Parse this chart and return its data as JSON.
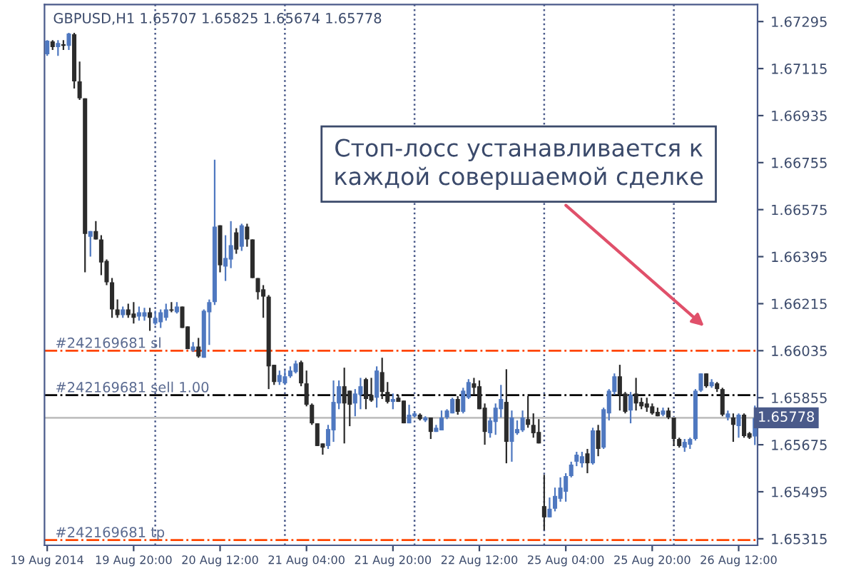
{
  "chart_data": {
    "type": "candlestick",
    "title": "GBPUSD,H1 1.65707 1.65825 1.65674 1.65778",
    "categories": [
      "19 Aug 2014",
      null,
      null,
      null,
      null,
      null,
      null,
      null,
      null,
      null,
      null,
      null,
      null,
      null,
      null,
      null,
      "19 Aug 20:00",
      null,
      null,
      null,
      null,
      null,
      null,
      null,
      null,
      null,
      null,
      null,
      null,
      null,
      null,
      null,
      "20 Aug 12:00",
      null,
      null,
      null,
      null,
      null,
      null,
      null,
      null,
      null,
      null,
      null,
      null,
      null,
      null,
      null,
      "21 Aug 04:00",
      null,
      null,
      null,
      null,
      null,
      null,
      null,
      null,
      null,
      null,
      null,
      null,
      null,
      null,
      null,
      "21 Aug 20:00",
      null,
      null,
      null,
      null,
      null,
      null,
      null,
      null,
      null,
      null,
      null,
      null,
      null,
      null,
      null,
      "22 Aug 12:00",
      null,
      null,
      null,
      null,
      null,
      null,
      null,
      null,
      null,
      null,
      null,
      null,
      null,
      null,
      null,
      "25 Aug 04:00",
      null,
      null,
      null,
      null,
      null,
      null,
      null,
      null,
      null,
      null,
      null,
      null,
      null,
      null,
      null,
      "25 Aug 20:00",
      null,
      null,
      null,
      null,
      null,
      null,
      null,
      null,
      null,
      null,
      null,
      null,
      null,
      null,
      null,
      "26 Aug 12:00",
      null,
      null,
      null
    ],
    "ohlc": [
      [
        1.6717,
        1.67224,
        1.67164,
        1.67222
      ],
      [
        1.67219,
        1.67224,
        1.67186,
        1.67197
      ],
      [
        1.67197,
        1.67224,
        1.67164,
        1.67213
      ],
      [
        1.67208,
        1.67224,
        1.67186,
        1.67202
      ],
      [
        1.67202,
        1.67252,
        1.67186,
        1.67249
      ],
      [
        1.67246,
        1.67252,
        1.67039,
        1.67066
      ],
      [
        1.67066,
        1.67142,
        1.66995,
        1.67001
      ],
      [
        1.67001,
        1.67001,
        1.66335,
        1.66482
      ],
      [
        1.66471,
        1.66493,
        1.66395,
        1.66493
      ],
      [
        1.66493,
        1.66531,
        1.66461,
        1.66461
      ],
      [
        1.66461,
        1.66477,
        1.66324,
        1.66373
      ],
      [
        1.66379,
        1.66384,
        1.66286,
        1.66297
      ],
      [
        1.66297,
        1.66313,
        1.66161,
        1.66193
      ],
      [
        1.66193,
        1.66231,
        1.66161,
        1.66171
      ],
      [
        1.66171,
        1.66204,
        1.66161,
        1.66193
      ],
      [
        1.66193,
        1.66215,
        1.66161,
        1.66171
      ],
      [
        1.66177,
        1.66221,
        1.66139,
        1.66161
      ],
      [
        1.66166,
        1.66204,
        1.6615,
        1.66182
      ],
      [
        1.66166,
        1.66199,
        1.6615,
        1.66182
      ],
      [
        1.66182,
        1.66199,
        1.66111,
        1.66161
      ],
      [
        1.66139,
        1.66188,
        1.66133,
        1.66161
      ],
      [
        1.66144,
        1.66193,
        1.66122,
        1.66182
      ],
      [
        1.66161,
        1.66215,
        1.6615,
        1.66193
      ],
      [
        1.66193,
        1.66221,
        1.66182,
        1.66188
      ],
      [
        1.66182,
        1.66221,
        1.66177,
        1.66204
      ],
      [
        1.66204,
        1.66204,
        1.66122,
        1.66122
      ],
      [
        1.66128,
        1.66128,
        1.66041,
        1.66041
      ],
      [
        1.66035,
        1.66068,
        1.6603,
        1.66051
      ],
      [
        1.66051,
        1.66084,
        1.66008,
        1.66013
      ],
      [
        1.66008,
        1.66193,
        1.66008,
        1.66188
      ],
      [
        1.66182,
        1.66231,
        1.66057,
        1.66221
      ],
      [
        1.66221,
        1.66766,
        1.6621,
        1.6651
      ],
      [
        1.66515,
        1.66515,
        1.66335,
        1.66362
      ],
      [
        1.66357,
        1.66477,
        1.66302,
        1.6639
      ],
      [
        1.66384,
        1.66531,
        1.66351,
        1.66439
      ],
      [
        1.66488,
        1.66504,
        1.66406,
        1.66422
      ],
      [
        1.66433,
        1.66521,
        1.66417,
        1.66515
      ],
      [
        1.6651,
        1.66521,
        1.66433,
        1.66461
      ],
      [
        1.66461,
        1.66461,
        1.66313,
        1.66313
      ],
      [
        1.66313,
        1.66313,
        1.66231,
        1.66259
      ],
      [
        1.6627,
        1.66286,
        1.66161,
        1.66242
      ],
      [
        1.66242,
        1.66248,
        1.65888,
        1.65975
      ],
      [
        1.65981,
        1.65981,
        1.65904,
        1.65915
      ],
      [
        1.65915,
        1.65959,
        1.65904,
        1.65942
      ],
      [
        1.6591,
        1.65959,
        1.65904,
        1.65937
      ],
      [
        1.65937,
        1.65975,
        1.65931,
        1.65959
      ],
      [
        1.65953,
        1.65997,
        1.65948,
        1.65986
      ],
      [
        1.65991,
        1.65997,
        1.65899,
        1.6591
      ],
      [
        1.6591,
        1.65959,
        1.65822,
        1.65828
      ],
      [
        1.65828,
        1.65833,
        1.65751,
        1.65757
      ],
      [
        1.65757,
        1.65757,
        1.6567,
        1.6567
      ],
      [
        1.6568,
        1.6568,
        1.65637,
        1.65664
      ],
      [
        1.6567,
        1.65751,
        1.65659,
        1.65735
      ],
      [
        1.6573,
        1.65921,
        1.65686,
        1.65839
      ],
      [
        1.65833,
        1.65921,
        1.65811,
        1.65899
      ],
      [
        1.65899,
        1.6597,
        1.6568,
        1.65833
      ],
      [
        1.65882,
        1.65882,
        1.65746,
        1.65828
      ],
      [
        1.65833,
        1.65888,
        1.65784,
        1.65871
      ],
      [
        1.65866,
        1.65931,
        1.65811,
        1.65899
      ],
      [
        1.65926,
        1.65931,
        1.65811,
        1.6585
      ],
      [
        1.65866,
        1.65931,
        1.65839,
        1.65844
      ],
      [
        1.65855,
        1.65975,
        1.65817,
        1.65959
      ],
      [
        1.65953,
        1.66008,
        1.6585,
        1.65877
      ],
      [
        1.65877,
        1.65915,
        1.65833,
        1.65839
      ],
      [
        1.65839,
        1.65871,
        1.65811,
        1.6585
      ],
      [
        1.65855,
        1.65866,
        1.65839,
        1.65839
      ],
      [
        1.65844,
        1.65844,
        1.65757,
        1.65757
      ],
      [
        1.65757,
        1.65828,
        1.65757,
        1.6579
      ],
      [
        1.65784,
        1.65801,
        1.65779,
        1.65795
      ],
      [
        1.6579,
        1.65795,
        1.65768,
        1.65773
      ],
      [
        1.65768,
        1.65784,
        1.65762,
        1.65779
      ],
      [
        1.65779,
        1.65779,
        1.65697,
        1.65724
      ],
      [
        1.65724,
        1.65751,
        1.65724,
        1.6574
      ],
      [
        1.6573,
        1.65806,
        1.6573,
        1.65779
      ],
      [
        1.65779,
        1.65811,
        1.65773,
        1.65806
      ],
      [
        1.65795,
        1.65855,
        1.65795,
        1.6585
      ],
      [
        1.6585,
        1.65861,
        1.6579,
        1.65801
      ],
      [
        1.65801,
        1.65893,
        1.65795,
        1.65882
      ],
      [
        1.65855,
        1.65926,
        1.6585,
        1.65915
      ],
      [
        1.6591,
        1.65931,
        1.65866,
        1.65893
      ],
      [
        1.65899,
        1.65921,
        1.65811,
        1.65811
      ],
      [
        1.65817,
        1.65833,
        1.65675,
        1.65724
      ],
      [
        1.65719,
        1.65779,
        1.65702,
        1.65768
      ],
      [
        1.65762,
        1.65833,
        1.65713,
        1.65817
      ],
      [
        1.65811,
        1.65904,
        1.65779,
        1.6585
      ],
      [
        1.65839,
        1.65964,
        1.65604,
        1.65686
      ],
      [
        1.65686,
        1.65806,
        1.6561,
        1.65779
      ],
      [
        1.65719,
        1.65768,
        1.65713,
        1.65735
      ],
      [
        1.6573,
        1.65806,
        1.65724,
        1.65779
      ],
      [
        1.65773,
        1.65861,
        1.6574,
        1.65751
      ],
      [
        1.65751,
        1.65795,
        1.65702,
        1.65719
      ],
      [
        1.65724,
        1.65773,
        1.6568,
        1.6568
      ],
      [
        1.6544,
        1.6556,
        1.65348,
        1.65397
      ],
      [
        1.65397,
        1.65473,
        1.65397,
        1.6543
      ],
      [
        1.6543,
        1.65511,
        1.6542,
        1.65479
      ],
      [
        1.65468,
        1.6555,
        1.65457,
        1.65511
      ],
      [
        1.65495,
        1.65566,
        1.65457,
        1.65555
      ],
      [
        1.65555,
        1.6561,
        1.6555,
        1.65599
      ],
      [
        1.6561,
        1.65648,
        1.65593,
        1.65637
      ],
      [
        1.65604,
        1.65648,
        1.65588,
        1.65631
      ],
      [
        1.65642,
        1.65659,
        1.65566,
        1.65604
      ],
      [
        1.65604,
        1.6574,
        1.65599,
        1.6573
      ],
      [
        1.6573,
        1.65751,
        1.65631,
        1.65659
      ],
      [
        1.65664,
        1.65817,
        1.65659,
        1.65811
      ],
      [
        1.65795,
        1.65888,
        1.65768,
        1.65882
      ],
      [
        1.65877,
        1.65948,
        1.65866,
        1.65937
      ],
      [
        1.65937,
        1.65981,
        1.65806,
        1.65866
      ],
      [
        1.65871,
        1.65877,
        1.65795,
        1.65801
      ],
      [
        1.65806,
        1.65877,
        1.65757,
        1.65866
      ],
      [
        1.65871,
        1.65931,
        1.65806,
        1.65833
      ],
      [
        1.65839,
        1.65855,
        1.65811,
        1.65822
      ],
      [
        1.65833,
        1.65855,
        1.65801,
        1.65817
      ],
      [
        1.65822,
        1.65833,
        1.6579,
        1.65795
      ],
      [
        1.65801,
        1.65817,
        1.65784,
        1.65784
      ],
      [
        1.6579,
        1.65817,
        1.65784,
        1.65806
      ],
      [
        1.65806,
        1.65817,
        1.65773,
        1.65779
      ],
      [
        1.65779,
        1.65779,
        1.6567,
        1.65697
      ],
      [
        1.65697,
        1.65702,
        1.65664,
        1.6567
      ],
      [
        1.65664,
        1.65697,
        1.65648,
        1.65686
      ],
      [
        1.65675,
        1.65702,
        1.65659,
        1.65697
      ],
      [
        1.65697,
        1.65888,
        1.65691,
        1.65882
      ],
      [
        1.65882,
        1.65948,
        1.65877,
        1.65948
      ],
      [
        1.65948,
        1.65948,
        1.65893,
        1.65899
      ],
      [
        1.65899,
        1.65926,
        1.65893,
        1.65915
      ],
      [
        1.6591,
        1.65915,
        1.65877,
        1.65888
      ],
      [
        1.65888,
        1.65893,
        1.65784,
        1.6579
      ],
      [
        1.65779,
        1.65806,
        1.65768,
        1.65795
      ],
      [
        1.65779,
        1.65795,
        1.65686,
        1.65751
      ],
      [
        1.65746,
        1.65795,
        1.65702,
        1.6579
      ],
      [
        1.6579,
        1.65795,
        1.65702,
        1.65708
      ],
      [
        1.65719,
        1.65724,
        1.65697,
        1.65702
      ],
      [
        1.65707,
        1.65825,
        1.65674,
        1.65778
      ]
    ],
    "colors": [
      "#4f78c0",
      "#2b2b2b",
      "#4f78c0",
      "#2b2b2b",
      "#4f78c0",
      "#2b2b2b",
      "#2b2b2b",
      "#2b2b2b",
      "#4f78c0",
      "#2b2b2b",
      "#2b2b2b",
      "#2b2b2b",
      "#2b2b2b",
      "#2b2b2b",
      "#4f78c0",
      "#2b2b2b",
      "#2b2b2b",
      "#4f78c0",
      "#4f78c0",
      "#2b2b2b",
      "#4f78c0",
      "#4f78c0",
      "#4f78c0",
      "#2b2b2b",
      "#4f78c0",
      "#2b2b2b",
      "#2b2b2b",
      "#4f78c0",
      "#2b2b2b",
      "#4f78c0",
      "#4f78c0",
      "#4f78c0",
      "#2b2b2b",
      "#4f78c0",
      "#4f78c0",
      "#2b2b2b",
      "#4f78c0",
      "#2b2b2b",
      "#2b2b2b",
      "#2b2b2b",
      "#2b2b2b",
      "#2b2b2b",
      "#2b2b2b",
      "#4f78c0",
      "#4f78c0",
      "#4f78c0",
      "#4f78c0",
      "#2b2b2b",
      "#2b2b2b",
      "#2b2b2b",
      "#2b2b2b",
      "#2b2b2b",
      "#4f78c0",
      "#4f78c0",
      "#4f78c0",
      "#2b2b2b",
      "#2b2b2b",
      "#4f78c0",
      "#4f78c0",
      "#2b2b2b",
      "#2b2b2b",
      "#4f78c0",
      "#2b2b2b",
      "#2b2b2b",
      "#4f78c0",
      "#2b2b2b",
      "#2b2b2b",
      "#4f78c0",
      "#4f78c0",
      "#2b2b2b",
      "#4f78c0",
      "#2b2b2b",
      "#4f78c0",
      "#4f78c0",
      "#4f78c0",
      "#4f78c0",
      "#2b2b2b",
      "#4f78c0",
      "#4f78c0",
      "#2b2b2b",
      "#2b2b2b",
      "#2b2b2b",
      "#4f78c0",
      "#4f78c0",
      "#4f78c0",
      "#2b2b2b",
      "#4f78c0",
      "#4f78c0",
      "#4f78c0",
      "#2b2b2b",
      "#2b2b2b",
      "#2b2b2b",
      "#2b2b2b",
      "#4f78c0",
      "#4f78c0",
      "#4f78c0",
      "#4f78c0",
      "#4f78c0",
      "#4f78c0",
      "#4f78c0",
      "#2b2b2b",
      "#4f78c0",
      "#2b2b2b",
      "#4f78c0",
      "#4f78c0",
      "#4f78c0",
      "#2b2b2b",
      "#2b2b2b",
      "#4f78c0",
      "#2b2b2b",
      "#2b2b2b",
      "#2b2b2b",
      "#2b2b2b",
      "#2b2b2b",
      "#4f78c0",
      "#2b2b2b",
      "#2b2b2b",
      "#2b2b2b",
      "#4f78c0",
      "#4f78c0",
      "#4f78c0",
      "#4f78c0",
      "#2b2b2b",
      "#4f78c0",
      "#2b2b2b",
      "#2b2b2b",
      "#4f78c0",
      "#2b2b2b",
      "#4f78c0",
      "#2b2b2b",
      "#2b2b2b",
      "#4f78c0"
    ],
    "ylim": [
      1.6529,
      1.6736
    ],
    "yticks": [
      1.67295,
      1.67115,
      1.66935,
      1.66755,
      1.66575,
      1.66395,
      1.66215,
      1.66035,
      1.65855,
      1.65675,
      1.65495,
      1.65315
    ],
    "ref_lines": [
      {
        "axis": "y",
        "value": 1.66035,
        "label": "#242169681 sl",
        "color": "#ff4500",
        "line_style": "dashdot"
      },
      {
        "axis": "y",
        "value": 1.65865,
        "label": "#242169681 sell 1.00",
        "color": "#000000",
        "line_style": "dashdot"
      },
      {
        "axis": "y",
        "value": 1.65778,
        "label": "1.65778",
        "color": "#c0c0c0",
        "line_style": "solid"
      },
      {
        "axis": "y",
        "value": 1.6531,
        "label": "#242169681 tp",
        "color": "#ff4500",
        "line_style": "dashdot"
      }
    ],
    "annotations": [
      "Стоп-лосс устанавливается к\nкаждой совершаемой сделке"
    ],
    "grid": false,
    "legend": false
  }
}
